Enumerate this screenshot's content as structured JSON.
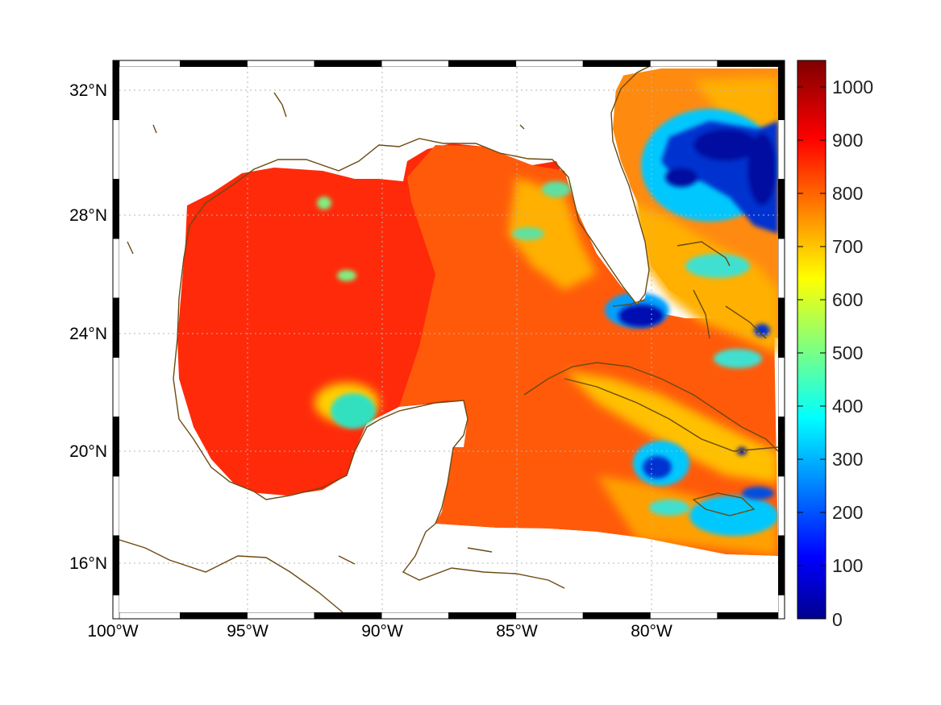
{
  "map": {
    "projection": "equirectangular",
    "extent": {
      "lon_min": -100,
      "lon_max": -75,
      "lat_min": 14.2,
      "lat_max": 33
    },
    "lon_tick_labels": [
      "100°W",
      "95°W",
      "90°W",
      "85°W",
      "80°W"
    ],
    "lat_tick_labels": [
      "32°N",
      "28°N",
      "24°N",
      "20°N",
      "16°N"
    ],
    "grid": "dotted",
    "coastline_color": "#6b4a10",
    "frame": "checkered-black-white"
  },
  "colorbar": {
    "colormap": "jet",
    "range": [
      0,
      1050
    ],
    "tick_labels": [
      "1000",
      "900",
      "800",
      "700",
      "600",
      "500",
      "400",
      "300",
      "200",
      "100",
      "0"
    ]
  },
  "colors": {
    "high": "#ff2a0a",
    "mid_high": "#ff6a0a",
    "mid": "#ffb000",
    "low": "#00d0ff",
    "very_low": "#0020c0"
  }
}
